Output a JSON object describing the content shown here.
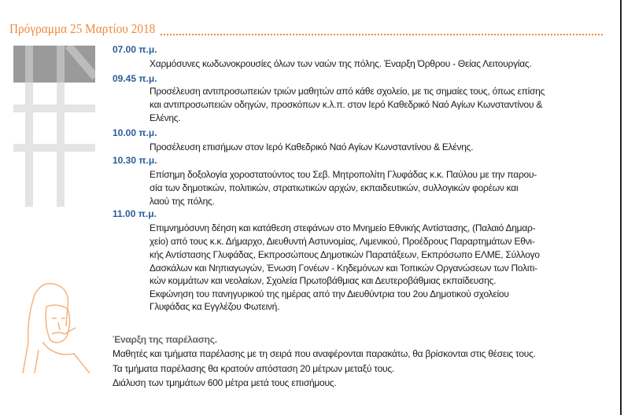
{
  "header": {
    "title": "Πρόγραμμα 25 Μαρτίου 2018"
  },
  "colors": {
    "accent": "#f08a3c",
    "time": "#2a5d9a",
    "text": "#1a1a1a"
  },
  "schedule": [
    {
      "time": "07.00 π.μ.",
      "lines": [
        "Χαρμόσυνες κωδωνοκρουσίες όλων των ναών της πόλης. Έναρξη Όρθρου - Θείας Λειτουργίας."
      ]
    },
    {
      "time": "09.45 π.μ.",
      "lines": [
        "Προσέλευση αντιπροσωπειών τριών μαθητών από κάθε σχολείο, με τις σημαίες τους, όπως επίσης",
        "και αντιπροσωπειών οδηγών, προσκόπων κ.λ.π. στον Ιερό Καθεδρικό Ναό Αγίων Κωνσταντίνου &",
        "Ελένης."
      ]
    },
    {
      "time": "10.00 π.μ.",
      "lines": [
        "Προσέλευση επισήμων στον Ιερό Καθεδρικό Ναό Αγίων Κωνσταντίνου & Ελένης."
      ]
    },
    {
      "time": "10.30 π.μ.",
      "lines": [
        "Επίσημη δοξολογία χοροστατούντος του Σεβ. Μητροπολίτη Γλυφάδας κ.κ. Παύλου με την παρου-",
        "σία των δημοτικών, πολιτικών, στρατιωτικών αρχών, εκπαιδευτικών, συλλογικών φορέων και",
        "λαού της πόλης."
      ]
    },
    {
      "time": "11.00 π.μ.",
      "lines": [
        "Επιμνημόσυνη δέηση και κατάθεση στεφάνων στο Μνημείο Εθνικής Αντίστασης, (Παλαιό Δημαρ-",
        "χείο) από τους κ.κ. Δήμαρχο, Διευθυντή Αστυνομίας, Λιμενικού, Προέδρους Παραρτημάτων Εθνι-",
        "κής Αντίστασης Γλυφάδας, Εκπροσώπους Δημοτικών Παρατάξεων, Εκπρόσωπο ΕΛΜΕ, Σύλλογο",
        "Δασκάλων και Νηπιαγωγών, Ένωση Γονέων - Κηδεμόνων και Τοπικών Οργανώσεων των Πολιτι-",
        "κών κομμάτων και νεολαίων, Σχολεία Πρωτοβάθμιας και Δευτεροβάθμιας εκπαίδευσης.",
        "Εκφώνηση του πανηγυρικού της ημέρας από την Διευθύντρια του 2ου Δημοτικού σχολείου",
        "Γλυφάδας κα Εγγλέζου Φωτεινή."
      ]
    }
  ],
  "parade": {
    "heading": "Έναρξη της παρέλασης.",
    "lines": [
      "Μαθητές και τμήματα παρέλασης με τη σειρά που αναφέρονται παρακάτω, θα βρίσκονται στις θέσεις τους.",
      "Τα τμήματα παρέλασης θα κρατούν απόσταση 20 μέτρων μεταξύ τους.",
      "Διάλυση των τμημάτων 600 μέτρα μετά τους επισήμους."
    ]
  }
}
